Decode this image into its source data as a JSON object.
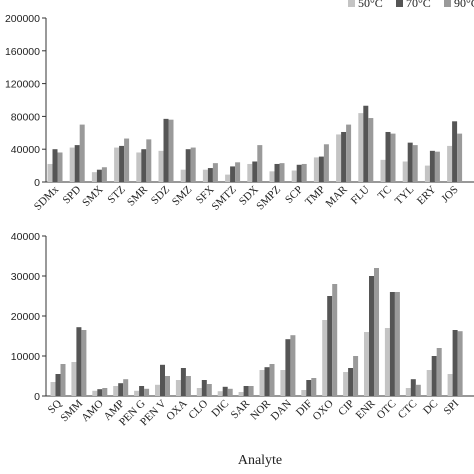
{
  "chart_data": [
    {
      "type": "bar",
      "categories": [
        "SDMx",
        "SPD",
        "SMX",
        "STZ",
        "SMR",
        "SDZ",
        "SMZ",
        "SFX",
        "SMTZ",
        "SDX",
        "SMPZ",
        "SCP",
        "TMP",
        "MAR",
        "FLU",
        "TC",
        "TYL",
        "ERY",
        "JOS"
      ],
      "series": [
        {
          "name": "50°C",
          "color": "#c4c4c4",
          "values": [
            22000,
            42000,
            12000,
            42000,
            36000,
            38000,
            15000,
            15000,
            9000,
            22000,
            13000,
            14000,
            30000,
            58000,
            84000,
            27000,
            25000,
            20000,
            44000
          ]
        },
        {
          "name": "70°C",
          "color": "#555555",
          "values": [
            40000,
            45000,
            15000,
            44000,
            40000,
            77000,
            40000,
            17000,
            19000,
            25000,
            22000,
            21000,
            31000,
            61000,
            93000,
            61000,
            48000,
            38000,
            74000
          ]
        },
        {
          "name": "90°C",
          "color": "#9a9a9a",
          "values": [
            36000,
            70000,
            18000,
            53000,
            52000,
            76000,
            42000,
            23000,
            24000,
            45000,
            23000,
            22000,
            46000,
            70000,
            78000,
            59000,
            45000,
            37000,
            59000
          ]
        }
      ],
      "ylim": [
        0,
        200000
      ],
      "yticks": [
        0,
        40000,
        80000,
        120000,
        160000,
        200000
      ]
    },
    {
      "type": "bar",
      "x_label": "Analyte",
      "categories": [
        "SQ",
        "SMM",
        "AMO",
        "AMP",
        "PEN G",
        "PEN V",
        "OXA",
        "CLO",
        "DIC",
        "SAR",
        "NOR",
        "DAN",
        "DIF",
        "OXO",
        "CIP",
        "ENR",
        "OTC",
        "CTC",
        "DC",
        "SPI"
      ],
      "series": [
        {
          "name": "50°C",
          "color": "#c4c4c4",
          "values": [
            3500,
            8500,
            1300,
            2500,
            1300,
            2800,
            4000,
            2000,
            1200,
            1000,
            6500,
            6500,
            1500,
            19000,
            6000,
            16000,
            17000,
            2000,
            6500,
            5500
          ]
        },
        {
          "name": "70°C",
          "color": "#555555",
          "values": [
            5500,
            17200,
            1700,
            3200,
            2500,
            7800,
            7000,
            4000,
            2300,
            2500,
            7200,
            14200,
            4000,
            25000,
            7000,
            30000,
            26000,
            4200,
            10000,
            16500
          ]
        },
        {
          "name": "90°C",
          "color": "#9a9a9a",
          "values": [
            8000,
            16500,
            2000,
            4200,
            1800,
            5000,
            5000,
            3000,
            1800,
            2500,
            8000,
            15200,
            4500,
            28000,
            10000,
            32000,
            26000,
            2800,
            12000,
            16200
          ]
        }
      ],
      "ylim": [
        0,
        40000
      ],
      "yticks": [
        0,
        10000,
        20000,
        30000,
        40000
      ]
    }
  ]
}
